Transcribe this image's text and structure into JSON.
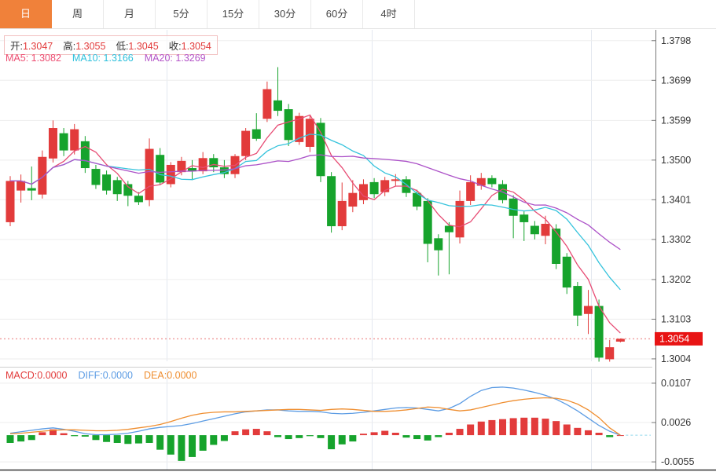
{
  "tabs": {
    "items": [
      {
        "label": "日",
        "active": true
      },
      {
        "label": "周",
        "active": false
      },
      {
        "label": "月",
        "active": false
      },
      {
        "label": "5分",
        "active": false
      },
      {
        "label": "15分",
        "active": false
      },
      {
        "label": "30分",
        "active": false
      },
      {
        "label": "60分",
        "active": false
      },
      {
        "label": "4时",
        "active": false
      }
    ]
  },
  "ohlc_header": {
    "open_label": "开:",
    "open": "1.3047",
    "high_label": "高:",
    "high": "1.3055",
    "low_label": "低:",
    "low": "1.3045",
    "close_label": "收:",
    "close": "1.3054"
  },
  "ma_header": {
    "ma5_label": "MA5:",
    "ma5": "1.3082",
    "ma10_label": "MA10:",
    "ma10": "1.3166",
    "ma20_label": "MA20:",
    "ma20": "1.3269"
  },
  "macd_header": {
    "macd_label": "MACD:",
    "macd": "0.0000",
    "diff_label": "DIFF:",
    "diff": "0.0000",
    "dea_label": "DEA:",
    "dea": "0.0000"
  },
  "price_axis": {
    "ticks": [
      1.3798,
      1.3699,
      1.3599,
      1.35,
      1.3401,
      1.3302,
      1.3202,
      1.3103,
      1.3004
    ],
    "current_label": "1.3054"
  },
  "macd_axis": {
    "ticks": [
      0.0107,
      0.0026,
      -0.0055
    ]
  },
  "colors": {
    "up": "#e23b3b",
    "down": "#16a32c",
    "ma5": "#e74c74",
    "ma10": "#35c3dc",
    "ma20": "#ac52c8",
    "diff": "#5c9ce4",
    "dea": "#ef8e30",
    "tab_active": "#f0813a",
    "price_line": "#ef9a9a",
    "price_tag": "#e81414",
    "grid": "#ededed",
    "vgrid": "#e3e8f0",
    "axis": "#777777",
    "text": "#333333"
  },
  "chart_data": [
    {
      "type": "candlestick",
      "title": "",
      "x_axis": {
        "type": "time",
        "labels_visible": false
      },
      "ylim": [
        1.2998,
        1.3825
      ],
      "yticks": [
        1.3798,
        1.3699,
        1.3599,
        1.35,
        1.3401,
        1.3302,
        1.3202,
        1.3103,
        1.3004
      ],
      "grid": true,
      "current_price": 1.3054,
      "up_color": "#e23b3b",
      "down_color": "#16a32c",
      "overlays": [
        {
          "name": "MA5",
          "period": 5,
          "color": "#e74c74",
          "last_value": 1.3082
        },
        {
          "name": "MA10",
          "period": 10,
          "color": "#35c3dc",
          "last_value": 1.3166
        },
        {
          "name": "MA20",
          "period": 20,
          "color": "#ac52c8",
          "last_value": 1.3269
        }
      ],
      "ohlc_format": [
        "open",
        "high",
        "low",
        "close"
      ],
      "ohlc": [
        [
          1.3345,
          1.346,
          1.3335,
          1.3448
        ],
        [
          1.3424,
          1.3464,
          1.3394,
          1.3448
        ],
        [
          1.343,
          1.3484,
          1.34,
          1.3424
        ],
        [
          1.3414,
          1.3524,
          1.3404,
          1.3508
        ],
        [
          1.3504,
          1.3599,
          1.3494,
          1.358
        ],
        [
          1.3567,
          1.358,
          1.351,
          1.3524
        ],
        [
          1.3524,
          1.359,
          1.3514,
          1.3577
        ],
        [
          1.3547,
          1.356,
          1.3468,
          1.348
        ],
        [
          1.3478,
          1.3488,
          1.3428,
          1.3438
        ],
        [
          1.3464,
          1.3474,
          1.3414,
          1.3424
        ],
        [
          1.345,
          1.3458,
          1.3398,
          1.3415
        ],
        [
          1.344,
          1.3448,
          1.3385,
          1.3411
        ],
        [
          1.3411,
          1.342,
          1.3388,
          1.3395
        ],
        [
          1.34,
          1.3554,
          1.3385,
          1.3528
        ],
        [
          1.3513,
          1.353,
          1.3438,
          1.3444
        ],
        [
          1.344,
          1.3495,
          1.3432,
          1.3488
        ],
        [
          1.347,
          1.3508,
          1.3462,
          1.3498
        ],
        [
          1.348,
          1.35,
          1.345,
          1.3472
        ],
        [
          1.3472,
          1.352,
          1.3465,
          1.3505
        ],
        [
          1.3505,
          1.3515,
          1.347,
          1.3482
        ],
        [
          1.3482,
          1.35,
          1.3455,
          1.3465
        ],
        [
          1.3465,
          1.3515,
          1.3455,
          1.351
        ],
        [
          1.351,
          1.358,
          1.35,
          1.3573
        ],
        [
          1.3577,
          1.3617,
          1.3548,
          1.3553
        ],
        [
          1.3603,
          1.3696,
          1.3595,
          1.3677
        ],
        [
          1.3649,
          1.3732,
          1.361,
          1.3623
        ],
        [
          1.3627,
          1.364,
          1.3535,
          1.355
        ],
        [
          1.3545,
          1.3618,
          1.3538,
          1.361
        ],
        [
          1.3533,
          1.3612,
          1.352,
          1.3603
        ],
        [
          1.3593,
          1.3605,
          1.3445,
          1.346
        ],
        [
          1.346,
          1.347,
          1.3319,
          1.3335
        ],
        [
          1.3335,
          1.3444,
          1.3325,
          1.3398
        ],
        [
          1.3384,
          1.345,
          1.337,
          1.3418
        ],
        [
          1.34,
          1.3452,
          1.339,
          1.344
        ],
        [
          1.3445,
          1.3455,
          1.3405,
          1.3415
        ],
        [
          1.342,
          1.3458,
          1.341,
          1.345
        ],
        [
          1.3448,
          1.3465,
          1.3436,
          1.3452
        ],
        [
          1.3452,
          1.346,
          1.3408,
          1.3418
        ],
        [
          1.3418,
          1.3426,
          1.3375,
          1.3384
        ],
        [
          1.3398,
          1.3405,
          1.3245,
          1.3291
        ],
        [
          1.3305,
          1.3315,
          1.3212,
          1.3275
        ],
        [
          1.3336,
          1.3345,
          1.3215,
          1.332
        ],
        [
          1.3307,
          1.3424,
          1.3292,
          1.3398
        ],
        [
          1.3398,
          1.3462,
          1.3388,
          1.3445
        ],
        [
          1.3436,
          1.3468,
          1.3426,
          1.3455
        ],
        [
          1.3455,
          1.3462,
          1.3432,
          1.344
        ],
        [
          1.344,
          1.345,
          1.3392,
          1.34
        ],
        [
          1.3404,
          1.3412,
          1.3305,
          1.3361
        ],
        [
          1.3364,
          1.3372,
          1.3298,
          1.3345
        ],
        [
          1.3336,
          1.3348,
          1.3302,
          1.3315
        ],
        [
          1.3311,
          1.3361,
          1.329,
          1.3341
        ],
        [
          1.3329,
          1.334,
          1.3228,
          1.3241
        ],
        [
          1.3259,
          1.3268,
          1.3166,
          1.3182
        ],
        [
          1.3186,
          1.3196,
          1.3086,
          1.3112
        ],
        [
          1.3116,
          1.3176,
          1.3066,
          1.3136
        ],
        [
          1.3136,
          1.3152,
          1.2997,
          1.3007
        ],
        [
          1.3003,
          1.3051,
          1.2997,
          1.3033
        ],
        [
          1.3047,
          1.3055,
          1.3045,
          1.3054
        ]
      ]
    },
    {
      "type": "bar",
      "title": "MACD",
      "ylim": [
        -0.0071,
        0.0136
      ],
      "yticks": [
        0.0107,
        0.0026,
        -0.0055
      ],
      "bar_up_color": "#e23b3b",
      "bar_down_color": "#16a32c",
      "bars": [
        -0.0016,
        -0.0013,
        -0.001,
        0.0006,
        0.0012,
        0.0004,
        -0.0002,
        -0.0003,
        -0.001,
        -0.0014,
        -0.0016,
        -0.0018,
        -0.0017,
        -0.0016,
        -0.003,
        -0.004,
        -0.0053,
        -0.0045,
        -0.0032,
        -0.002,
        -0.0012,
        0.0008,
        0.0012,
        0.0013,
        0.0008,
        -0.0004,
        -0.0008,
        -0.0006,
        -0.0002,
        -0.0006,
        -0.0029,
        -0.0019,
        -0.0013,
        0.0003,
        0.0006,
        0.0009,
        0.0005,
        -0.0005,
        -0.0008,
        -0.0011,
        -0.0004,
        0.0005,
        0.0013,
        0.0022,
        0.0028,
        0.0031,
        0.0033,
        0.0035,
        0.0036,
        0.0036,
        0.0034,
        0.0029,
        0.0022,
        0.0015,
        0.001,
        0.0005,
        -0.0004,
        0.0
      ],
      "series": [
        {
          "name": "DIFF",
          "color": "#5c9ce4",
          "values": [
            0.0004,
            0.0007,
            0.001,
            0.0013,
            0.0015,
            0.0012,
            0.0008,
            0.0003,
            0.0001,
            0.0001,
            0.0002,
            0.0004,
            0.0008,
            0.0013,
            0.0016,
            0.0018,
            0.002,
            0.0024,
            0.0029,
            0.0034,
            0.0039,
            0.0044,
            0.0048,
            0.005,
            0.0052,
            0.0052,
            0.005,
            0.0049,
            0.0049,
            0.0048,
            0.0045,
            0.0044,
            0.0045,
            0.0047,
            0.005,
            0.0053,
            0.0056,
            0.0057,
            0.0056,
            0.0053,
            0.005,
            0.0055,
            0.0065,
            0.008,
            0.0092,
            0.0098,
            0.0099,
            0.0097,
            0.0093,
            0.0088,
            0.0082,
            0.0074,
            0.0063,
            0.005,
            0.0035,
            0.002,
            0.0008,
            0.0
          ]
        },
        {
          "name": "DEA",
          "color": "#ef8e30",
          "values": [
            0.0003,
            0.0004,
            0.0006,
            0.0008,
            0.001,
            0.0011,
            0.0011,
            0.001,
            0.0009,
            0.0009,
            0.001,
            0.0012,
            0.0015,
            0.0018,
            0.0022,
            0.0028,
            0.0035,
            0.0041,
            0.0045,
            0.0047,
            0.0048,
            0.0048,
            0.0049,
            0.005,
            0.0051,
            0.0052,
            0.0053,
            0.0053,
            0.0052,
            0.0051,
            0.0053,
            0.0054,
            0.0053,
            0.0051,
            0.0049,
            0.0049,
            0.005,
            0.0052,
            0.0055,
            0.0058,
            0.0057,
            0.0053,
            0.005,
            0.0052,
            0.0057,
            0.0062,
            0.0067,
            0.0071,
            0.0074,
            0.0076,
            0.0077,
            0.0076,
            0.0072,
            0.0064,
            0.0052,
            0.0036,
            0.0015,
            0.0
          ]
        }
      ]
    }
  ]
}
